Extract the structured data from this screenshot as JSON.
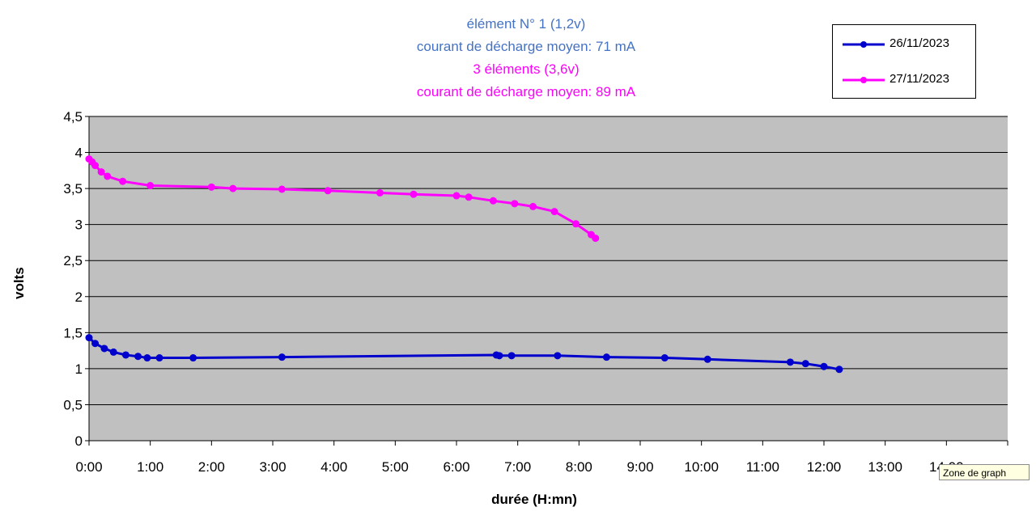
{
  "chart_data": {
    "type": "line",
    "title_lines": [
      {
        "text": "élément N° 1 (1,2v)",
        "color": "#4472C4"
      },
      {
        "text": "courant de décharge moyen:  71 mA",
        "color": "#4472C4"
      },
      {
        "text": "3 éléments (3,6v)",
        "color": "#FF00FF"
      },
      {
        "text": "courant de décharge moyen:  89 mA",
        "color": "#FF00FF"
      }
    ],
    "xlabel": "durée (H:mn)",
    "ylabel": "volts",
    "xlim": [
      0,
      15
    ],
    "ylim": [
      0,
      4.5
    ],
    "y_ticks": [
      0,
      0.5,
      1,
      1.5,
      2,
      2.5,
      3,
      3.5,
      4,
      4.5
    ],
    "y_tick_labels": [
      "0",
      "0,5",
      "1",
      "1,5",
      "2",
      "2,5",
      "3",
      "3,5",
      "4",
      "4,5"
    ],
    "x_tick_labels": [
      "0:00",
      "1:00",
      "2:00",
      "3:00",
      "4:00",
      "5:00",
      "6:00",
      "7:00",
      "8:00",
      "9:00",
      "10:00",
      "11:00",
      "12:00",
      "13:00",
      "14:00"
    ],
    "plot_background": "#C0C0C0",
    "gridlines": "horizontal",
    "legend_position": "top-right",
    "series": [
      {
        "name": "26/11/2023",
        "color": "#0000CC",
        "x": [
          0,
          0.1,
          0.25,
          0.4,
          0.6,
          0.8,
          0.95,
          1.15,
          1.7,
          3.15,
          6.65,
          6.7,
          6.9,
          7.65,
          8.45,
          9.4,
          10.1,
          11.45,
          11.7,
          12.0,
          12.25
        ],
        "y": [
          1.43,
          1.35,
          1.28,
          1.23,
          1.19,
          1.17,
          1.15,
          1.15,
          1.15,
          1.16,
          1.19,
          1.18,
          1.18,
          1.18,
          1.16,
          1.15,
          1.13,
          1.09,
          1.07,
          1.03,
          0.99
        ]
      },
      {
        "name": "27/11/2023",
        "color": "#FF00FF",
        "x": [
          0,
          0.05,
          0.1,
          0.2,
          0.3,
          0.55,
          1.0,
          2.0,
          2.35,
          3.15,
          3.9,
          4.75,
          5.3,
          6.0,
          6.2,
          6.6,
          6.95,
          7.25,
          7.6,
          7.95,
          8.2,
          8.27
        ],
        "y": [
          3.91,
          3.87,
          3.82,
          3.73,
          3.67,
          3.6,
          3.54,
          3.52,
          3.5,
          3.49,
          3.47,
          3.44,
          3.42,
          3.4,
          3.38,
          3.33,
          3.29,
          3.25,
          3.18,
          3.01,
          2.86,
          2.81
        ]
      }
    ]
  },
  "tooltip": {
    "text": "Zone de graph"
  }
}
